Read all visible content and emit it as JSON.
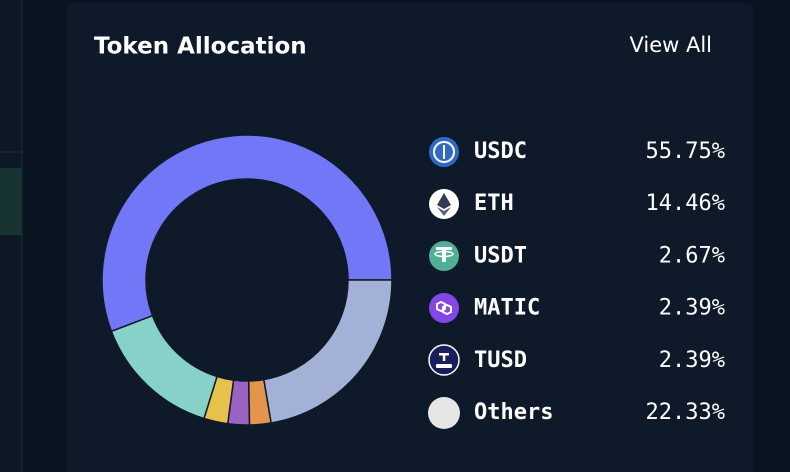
{
  "view_all": "View All",
  "chart_data": {
    "type": "donut",
    "title": "Token Allocation",
    "categories": [
      "USDC",
      "ETH",
      "USDT",
      "MATIC",
      "TUSD",
      "Others"
    ],
    "values": [
      55.75,
      14.46,
      2.67,
      2.39,
      2.39,
      22.33
    ],
    "value_labels": [
      "55.75%",
      "14.46%",
      "2.67%",
      "2.39%",
      "2.39%",
      "22.33%"
    ],
    "colors": [
      "#7177f6",
      "#87d2c8",
      "#e8c14d",
      "#9b63c3",
      "#e3954c",
      "#a4b1d6"
    ]
  }
}
